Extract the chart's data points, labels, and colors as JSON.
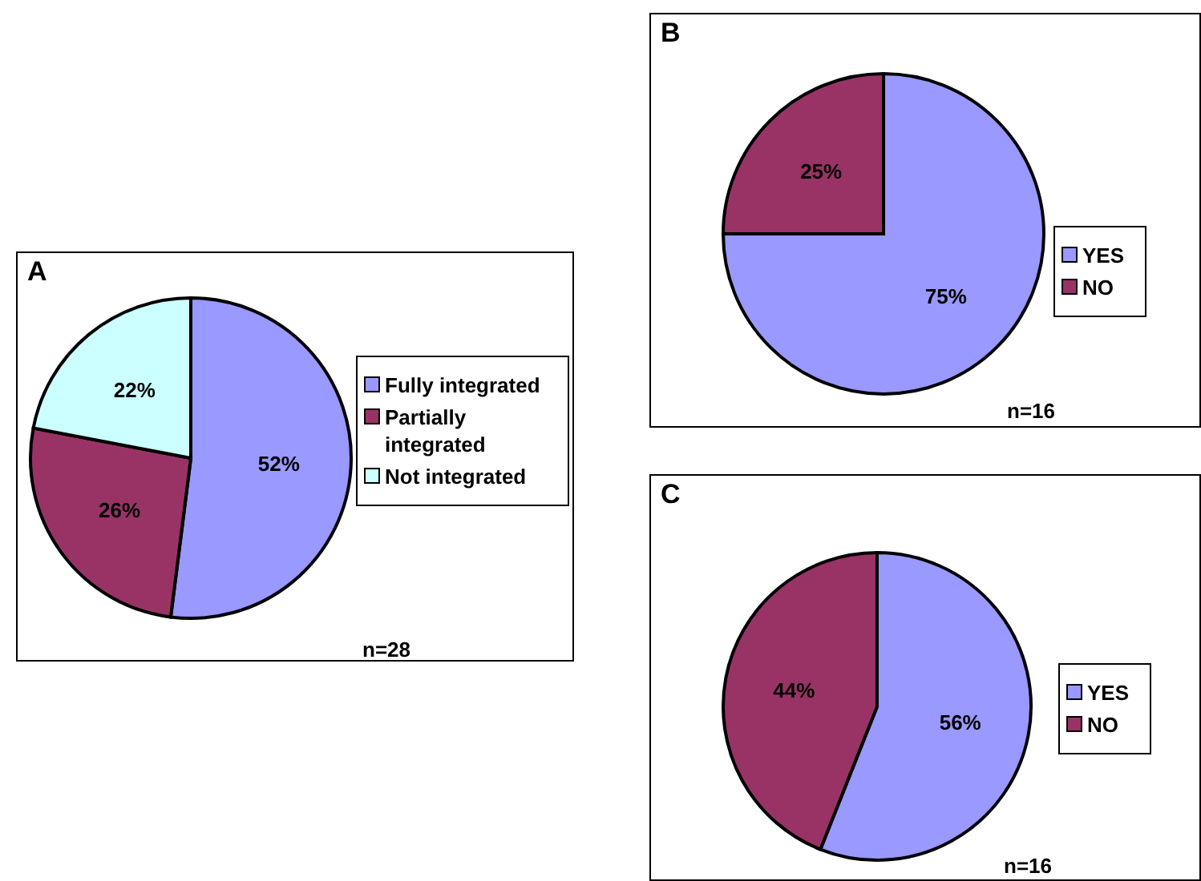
{
  "chart_data": [
    {
      "type": "pie",
      "title": "A",
      "categories": [
        "Fully integrated",
        "Partially integrated",
        "Not integrated"
      ],
      "values": [
        52,
        26,
        22
      ],
      "value_labels": [
        "52%",
        "26%",
        "22%"
      ],
      "colors": [
        "#9999ff",
        "#993366",
        "#ccffff"
      ],
      "legend": "right",
      "annotations": [
        "n=28"
      ]
    },
    {
      "type": "pie",
      "title": "B",
      "categories": [
        "YES",
        "NO"
      ],
      "values": [
        75,
        25
      ],
      "value_labels": [
        "75%",
        "25%"
      ],
      "colors": [
        "#9999ff",
        "#993366"
      ],
      "legend": "right",
      "annotations": [
        "n=16"
      ]
    },
    {
      "type": "pie",
      "title": "C",
      "categories": [
        "YES",
        "NO"
      ],
      "values": [
        56,
        44
      ],
      "value_labels": [
        "56%",
        "44%"
      ],
      "colors": [
        "#9999ff",
        "#993366"
      ],
      "legend": "right",
      "annotations": [
        "n=16"
      ]
    }
  ]
}
